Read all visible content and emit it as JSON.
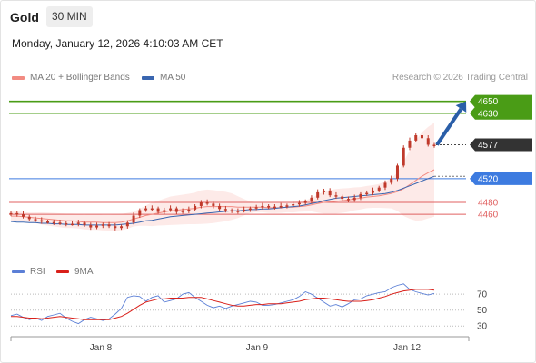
{
  "header": {
    "title": "Gold",
    "timeframe": "30 MIN",
    "datetime": "Monday, January 12, 2026 4:10:03 AM CET"
  },
  "legend": {
    "ma20": "MA 20 + Bollinger Bands",
    "ma50": "MA 50",
    "credit": "Research © 2026 Trading Central"
  },
  "colors": {
    "resistance": "#4a9c16",
    "support_blue": "#3d7be0",
    "support_red": "#e06060",
    "ma20": "#f28b82",
    "ma50": "#3a66b0",
    "arrow": "#2a5ea8",
    "rsi": "#5b7fd6",
    "rsi_ma": "#d9201a",
    "candle": "#c0392b"
  },
  "chart_data": [
    {
      "type": "line",
      "name": "price",
      "x_ticks": [
        "Jan 8",
        "Jan 9",
        "Jan 12"
      ],
      "ylim": [
        4390,
        4680
      ],
      "levels": [
        {
          "value": 4650,
          "label": "4650",
          "kind": "resistance"
        },
        {
          "value": 4630,
          "label": "4630",
          "kind": "resistance"
        },
        {
          "value": 4577,
          "label": "4577",
          "kind": "current"
        },
        {
          "value": 4520,
          "label": "4520",
          "kind": "support_blue"
        },
        {
          "value": 4480,
          "label": "4480",
          "kind": "support_red"
        },
        {
          "value": 4460,
          "label": "4460",
          "kind": "support_red"
        }
      ],
      "close": [
        4462,
        4460,
        4456,
        4452,
        4450,
        4448,
        4447,
        4446,
        4445,
        4444,
        4444,
        4446,
        4442,
        4438,
        4441,
        4443,
        4440,
        4437,
        4440,
        4446,
        4458,
        4467,
        4470,
        4470,
        4464,
        4467,
        4470,
        4464,
        4466,
        4468,
        4474,
        4480,
        4478,
        4474,
        4469,
        4467,
        4465,
        4466,
        4468,
        4470,
        4472,
        4474,
        4472,
        4473,
        4474,
        4475,
        4477,
        4479,
        4482,
        4488,
        4497,
        4500,
        4492,
        4490,
        4486,
        4484,
        4488,
        4494,
        4496,
        4500,
        4505,
        4513,
        4520,
        4542,
        4572,
        4584,
        4593,
        4588,
        4577,
        4576
      ],
      "ma20": [
        4457,
        4457,
        4456,
        4455,
        4454,
        4453,
        4452,
        4451,
        4450,
        4449,
        4449,
        4448,
        4447,
        4447,
        4447,
        4446,
        4446,
        4446,
        4447,
        4449,
        4452,
        4455,
        4458,
        4460,
        4462,
        4464,
        4466,
        4467,
        4468,
        4469,
        4470,
        4472,
        4473,
        4473,
        4473,
        4473,
        4473,
        4472,
        4472,
        4472,
        4472,
        4472,
        4471,
        4471,
        4471,
        4472,
        4472,
        4473,
        4474,
        4476,
        4478,
        4480,
        4481,
        4482,
        4483,
        4484,
        4486,
        4487,
        4489,
        4490,
        4491,
        4493,
        4495,
        4498,
        4503,
        4510,
        4517,
        4524,
        4530,
        4535
      ],
      "ma50": [
        4448,
        4447,
        4447,
        4446,
        4446,
        4445,
        4445,
        4444,
        4444,
        4443,
        4443,
        4443,
        4442,
        4442,
        4442,
        4442,
        4442,
        4442,
        4443,
        4444,
        4445,
        4447,
        4449,
        4450,
        4452,
        4454,
        4456,
        4457,
        4458,
        4459,
        4460,
        4461,
        4462,
        4463,
        4464,
        4465,
        4466,
        4466,
        4467,
        4468,
        4468,
        4469,
        4469,
        4470,
        4471,
        4472,
        4473,
        4474,
        4476,
        4478,
        4480,
        4483,
        4485,
        4487,
        4488,
        4489,
        4490,
        4491,
        4492,
        4493,
        4494,
        4495,
        4497,
        4500,
        4504,
        4508,
        4512,
        4516,
        4520,
        4524
      ],
      "arrow": {
        "from": 4577,
        "to": 4650
      }
    },
    {
      "type": "line",
      "name": "rsi",
      "legend": [
        "RSI",
        "9MA"
      ],
      "yticks": [
        70,
        50,
        30
      ],
      "ylim": [
        20,
        85
      ],
      "rsi": [
        43,
        45,
        41,
        38,
        40,
        37,
        42,
        44,
        46,
        40,
        36,
        33,
        38,
        41,
        39,
        37,
        39,
        45,
        52,
        66,
        68,
        67,
        61,
        66,
        68,
        60,
        62,
        64,
        70,
        72,
        66,
        61,
        56,
        53,
        55,
        52,
        55,
        57,
        59,
        61,
        60,
        56,
        56,
        57,
        59,
        61,
        63,
        67,
        73,
        70,
        65,
        60,
        55,
        57,
        54,
        58,
        63,
        64,
        68,
        70,
        72,
        73,
        78,
        81,
        83,
        76,
        73,
        71,
        69,
        71
      ],
      "rsi_ma": [
        42,
        42,
        41,
        40,
        40,
        39,
        40,
        41,
        42,
        41,
        40,
        39,
        38,
        38,
        38,
        38,
        38,
        40,
        42,
        46,
        51,
        56,
        60,
        62,
        64,
        64,
        65,
        65,
        65,
        66,
        66,
        66,
        64,
        62,
        60,
        58,
        56,
        55,
        55,
        56,
        57,
        57,
        58,
        58,
        58,
        59,
        60,
        61,
        63,
        64,
        65,
        65,
        64,
        63,
        62,
        61,
        61,
        61,
        62,
        63,
        65,
        67,
        70,
        72,
        74,
        75,
        76,
        76,
        76,
        75
      ]
    }
  ]
}
